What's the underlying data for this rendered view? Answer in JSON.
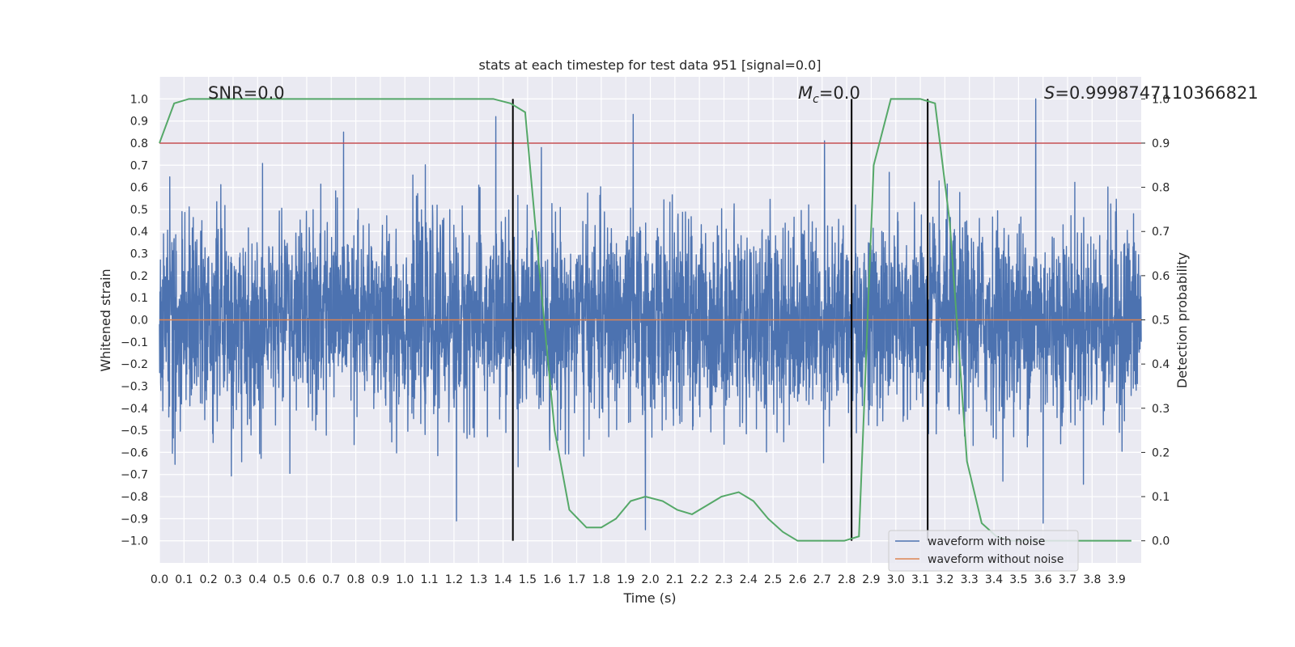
{
  "chart_data": {
    "type": "line",
    "title": "stats at each timestep for test data 951 [signal=0.0]",
    "xlabel": "Time (s)",
    "ylabel": "Whitened strain",
    "y2label": "Detection probability",
    "xlim": [
      0.0,
      4.0
    ],
    "ylim": [
      -1.1,
      1.1
    ],
    "y2lim": [
      -0.05,
      1.05
    ],
    "xticks": [
      "0.0",
      "0.1",
      "0.2",
      "0.3",
      "0.4",
      "0.5",
      "0.6",
      "0.7",
      "0.8",
      "0.9",
      "1.0",
      "1.1",
      "1.2",
      "1.3",
      "1.4",
      "1.5",
      "1.6",
      "1.7",
      "1.8",
      "1.9",
      "2.0",
      "2.1",
      "2.2",
      "2.3",
      "2.4",
      "2.5",
      "2.6",
      "2.7",
      "2.8",
      "2.9",
      "3.0",
      "3.1",
      "3.2",
      "3.3",
      "3.4",
      "3.5",
      "3.6",
      "3.7",
      "3.8",
      "3.9"
    ],
    "yticks": [
      "1.0",
      "0.9",
      "0.8",
      "0.7",
      "0.6",
      "0.5",
      "0.4",
      "0.3",
      "0.2",
      "0.1",
      "0.0",
      "−0.1",
      "−0.2",
      "−0.3",
      "−0.4",
      "−0.5",
      "−0.6",
      "−0.7",
      "−0.8",
      "−0.9",
      "−1.0"
    ],
    "y2ticks": [
      "1.0",
      "0.9",
      "0.8",
      "0.7",
      "0.6",
      "0.5",
      "0.4",
      "0.3",
      "0.2",
      "0.1",
      "0.0"
    ],
    "annotations": {
      "snr": "SNR=0.0",
      "mc_symbol": "M",
      "mc_sub": "c",
      "mc_value": "=0.0",
      "s_symbol": "S",
      "s_value": "=0.9998747110366821"
    },
    "threshold": 0.9,
    "vlines": [
      1.44,
      2.82,
      3.13
    ],
    "series": [
      {
        "name": "waveform with noise",
        "color": "#4c72b0",
        "samples": 4096,
        "seed": 951,
        "peaks": [
          {
            "x": 0.75,
            "y": 0.85
          },
          {
            "x": 1.37,
            "y": 0.92
          },
          {
            "x": 1.93,
            "y": 0.93
          },
          {
            "x": 3.57,
            "y": 1.0
          },
          {
            "x": 2.71,
            "y": 0.81
          },
          {
            "x": 1.44,
            "y": -0.85
          },
          {
            "x": 1.98,
            "y": -0.95
          },
          {
            "x": 1.21,
            "y": -0.91
          },
          {
            "x": 3.6,
            "y": -0.92
          }
        ]
      },
      {
        "name": "waveform without noise",
        "color": "#dd8452",
        "value": 0.0
      },
      {
        "name": "detection probability",
        "color": "#55a868",
        "x": [
          0.0,
          0.06,
          0.12,
          0.19,
          0.25,
          0.31,
          0.37,
          0.43,
          0.5,
          0.56,
          0.62,
          0.68,
          0.74,
          0.81,
          0.87,
          0.93,
          0.99,
          1.05,
          1.12,
          1.18,
          1.24,
          1.3,
          1.36,
          1.43,
          1.49,
          1.55,
          1.61,
          1.67,
          1.74,
          1.8,
          1.86,
          1.92,
          1.98,
          2.05,
          2.11,
          2.17,
          2.23,
          2.29,
          2.36,
          2.42,
          2.48,
          2.54,
          2.6,
          2.67,
          2.73,
          2.79,
          2.85,
          2.91,
          2.98,
          3.04,
          3.1,
          3.16,
          3.22,
          3.29,
          3.35,
          3.41,
          3.47,
          3.53,
          3.6,
          3.66,
          3.72,
          3.78,
          3.84,
          3.9,
          3.96
        ],
        "y": [
          0.9,
          0.99,
          1.0,
          1.0,
          1.0,
          1.0,
          1.0,
          1.0,
          1.0,
          1.0,
          1.0,
          1.0,
          1.0,
          1.0,
          1.0,
          1.0,
          1.0,
          1.0,
          1.0,
          1.0,
          1.0,
          1.0,
          1.0,
          0.99,
          0.97,
          0.6,
          0.25,
          0.07,
          0.03,
          0.03,
          0.05,
          0.09,
          0.1,
          0.09,
          0.07,
          0.06,
          0.08,
          0.1,
          0.11,
          0.09,
          0.05,
          0.02,
          0.0,
          0.0,
          0.0,
          0.0,
          0.01,
          0.85,
          1.0,
          1.0,
          1.0,
          0.99,
          0.72,
          0.18,
          0.04,
          0.01,
          0.0,
          0.0,
          0.0,
          0.0,
          0.0,
          0.0,
          0.0,
          0.0,
          0.0
        ]
      }
    ],
    "legend": {
      "position": "lower-right",
      "entries": [
        "waveform with noise",
        "waveform without noise"
      ]
    }
  }
}
